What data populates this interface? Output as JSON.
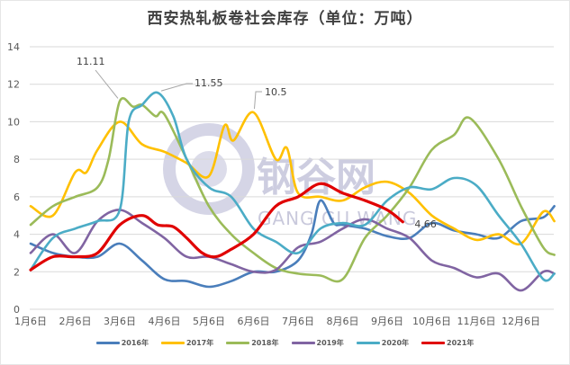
{
  "chart_data": {
    "type": "line",
    "title": "西安热轧板卷社会库存（单位：万吨）",
    "xlabel": "",
    "ylabel": "",
    "ylim": [
      0,
      14
    ],
    "yticks": [
      0,
      2,
      4,
      6,
      8,
      10,
      12,
      14
    ],
    "grid": true,
    "legend_position": "bottom",
    "x_tick_labels": [
      "1月6日",
      "2月6日",
      "3月6日",
      "4月6日",
      "5月6日",
      "6月6日",
      "7月6日",
      "8月6日",
      "9月6日",
      "10月6日",
      "11月6日",
      "12月6日"
    ],
    "x_unit": "months since Jan 6 (0 = 1月6日, 11 = 12月6日)",
    "series": [
      {
        "name": "2016年",
        "color": "#4a7ebb",
        "x": [
          0,
          0.5,
          1,
          1.5,
          2,
          2.5,
          3,
          3.5,
          4,
          4.5,
          5,
          5.5,
          6,
          6.3,
          6.5,
          6.8,
          7,
          7.5,
          8,
          8.5,
          9,
          9.5,
          10,
          10.5,
          11,
          11.5,
          11.75
        ],
        "values": [
          3.5,
          3.0,
          2.8,
          2.8,
          3.5,
          2.6,
          1.6,
          1.5,
          1.2,
          1.5,
          2.0,
          2.0,
          2.6,
          4.0,
          5.8,
          4.6,
          4.5,
          4.3,
          3.9,
          3.8,
          4.6,
          4.2,
          4.0,
          3.8,
          4.7,
          4.9,
          5.5
        ]
      },
      {
        "name": "2017年",
        "color": "#ffc000",
        "x": [
          0,
          0.5,
          1,
          1.25,
          1.5,
          2,
          2.5,
          3,
          3.5,
          4,
          4.35,
          4.55,
          5,
          5.5,
          5.75,
          6,
          6.5,
          7,
          7.5,
          8,
          8.5,
          9,
          9.5,
          10,
          10.5,
          11,
          11.5,
          11.75
        ],
        "values": [
          5.5,
          5.0,
          7.3,
          7.3,
          8.5,
          10.0,
          8.8,
          8.4,
          7.8,
          7.1,
          9.8,
          9.0,
          10.5,
          8.0,
          8.6,
          6.2,
          6.0,
          5.8,
          6.5,
          6.8,
          6.2,
          5.0,
          4.3,
          3.7,
          4.0,
          3.5,
          5.2,
          4.7
        ]
      },
      {
        "name": "2018年",
        "color": "#9bbb59",
        "x": [
          0,
          0.5,
          1,
          1.5,
          1.75,
          2,
          2.3,
          2.5,
          2.8,
          3,
          3.5,
          4,
          4.5,
          5,
          5.5,
          6,
          6.5,
          7,
          7.5,
          8,
          8.5,
          9,
          9.5,
          9.85,
          10.5,
          11,
          11.5,
          11.75
        ],
        "values": [
          4.5,
          5.5,
          6.0,
          6.5,
          8.0,
          11.1,
          10.8,
          10.9,
          10.3,
          10.4,
          8.0,
          5.5,
          4.0,
          3.0,
          2.2,
          1.9,
          1.8,
          1.6,
          3.8,
          5.0,
          6.5,
          8.5,
          9.3,
          10.2,
          8.0,
          5.5,
          3.3,
          2.9
        ]
      },
      {
        "name": "2019年",
        "color": "#8064a2",
        "x": [
          0,
          0.5,
          1,
          1.5,
          2,
          2.5,
          3,
          3.5,
          4,
          4.5,
          5,
          5.5,
          6,
          6.5,
          7,
          7.5,
          8,
          8.5,
          9,
          9.5,
          10,
          10.5,
          11,
          11.5,
          11.75
        ],
        "values": [
          3.0,
          4.0,
          3.0,
          4.7,
          5.3,
          4.6,
          3.8,
          2.8,
          2.8,
          2.4,
          2.0,
          2.1,
          3.3,
          3.6,
          4.3,
          4.8,
          4.3,
          3.8,
          2.6,
          2.2,
          1.7,
          1.9,
          1.0,
          2.0,
          1.9
        ]
      },
      {
        "name": "2020年",
        "color": "#4bacc6",
        "x": [
          0,
          0.5,
          1,
          1.5,
          2,
          2.2,
          2.5,
          2.85,
          3.2,
          3.5,
          4,
          4.5,
          5,
          5.5,
          6,
          6.5,
          7,
          7.5,
          8,
          8.5,
          9,
          9.5,
          10,
          10.5,
          11,
          11.5,
          11.75
        ],
        "values": [
          2.1,
          3.8,
          4.3,
          4.7,
          5.3,
          10.0,
          10.9,
          11.55,
          10.3,
          8.0,
          6.5,
          6.0,
          4.3,
          3.6,
          3.0,
          4.3,
          4.6,
          4.5,
          5.8,
          6.5,
          6.4,
          7.0,
          6.6,
          5.0,
          3.5,
          1.6,
          1.9
        ]
      },
      {
        "name": "2021年",
        "color": "#e00000",
        "x": [
          0,
          0.5,
          1,
          1.5,
          2,
          2.5,
          2.85,
          3.2,
          3.5,
          3.85,
          4.15,
          4.5,
          5,
          5.5,
          6,
          6.5,
          7,
          7.5,
          8,
          8.35
        ],
        "values": [
          2.1,
          2.8,
          2.8,
          3.0,
          4.5,
          5.0,
          4.5,
          4.4,
          3.8,
          3.0,
          2.8,
          3.2,
          4.0,
          5.5,
          6.0,
          6.7,
          6.2,
          5.8,
          5.3,
          4.66
        ]
      }
    ],
    "annotations": [
      {
        "text": "11.11",
        "series": "2018年"
      },
      {
        "text": "11.55",
        "series": "2020年"
      },
      {
        "text": "10.5",
        "series": "2017年"
      },
      {
        "text": "4.66",
        "series": "2021年"
      }
    ]
  },
  "watermark": {
    "cn": "钢谷网",
    "en": "GANG GU WANG"
  }
}
